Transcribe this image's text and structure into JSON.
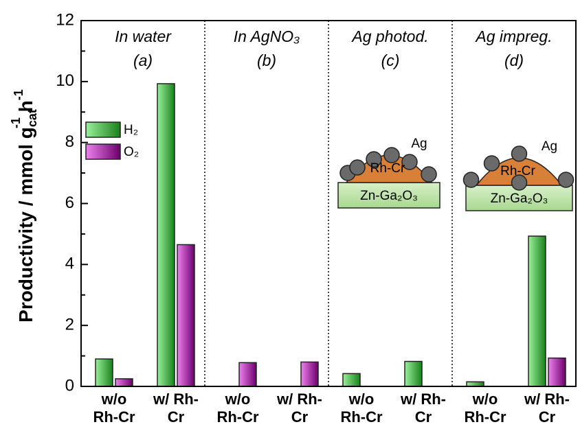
{
  "chart_data": {
    "type": "bar",
    "ylabel": {
      "main": "Productivity / mmol g",
      "sub": "cat",
      "sup1": "-1",
      "unit": " h",
      "sup2": "-1"
    },
    "panels": [
      {
        "title": "In water",
        "label": "(a)"
      },
      {
        "title": "In AgNO₃",
        "label": "(b)"
      },
      {
        "title": "Ag photod.",
        "label": "(c)"
      },
      {
        "title": "Ag impreg.",
        "label": "(d)"
      }
    ],
    "categories": [
      "w/o Rh-Cr",
      "w/ Rh-Cr",
      "w/o Rh-Cr",
      "w/ Rh-Cr",
      "w/o Rh-Cr",
      "w/ Rh-Cr",
      "w/o Rh-Cr",
      "w/ Rh-Cr"
    ],
    "series": [
      {
        "name": "H₂",
        "color": "#36b836",
        "values": [
          0.9,
          9.93,
          null,
          null,
          0.42,
          0.82,
          0.15,
          4.93
        ]
      },
      {
        "name": "O₂",
        "color": "#a818a8",
        "values": [
          0.25,
          4.65,
          0.78,
          0.8,
          null,
          null,
          null,
          0.93
        ]
      }
    ],
    "insets": [
      {
        "metal": "Ag",
        "core": "Rh-Cr",
        "support": "Zn-Ga₂O₃"
      },
      {
        "metal": "Ag",
        "core": "Rh-Cr",
        "support": "Zn-Ga₂O₃"
      }
    ],
    "ylim": [
      0,
      12
    ],
    "yticks": [
      0,
      2,
      4,
      6,
      8,
      10,
      12
    ],
    "legend": "upper left"
  }
}
